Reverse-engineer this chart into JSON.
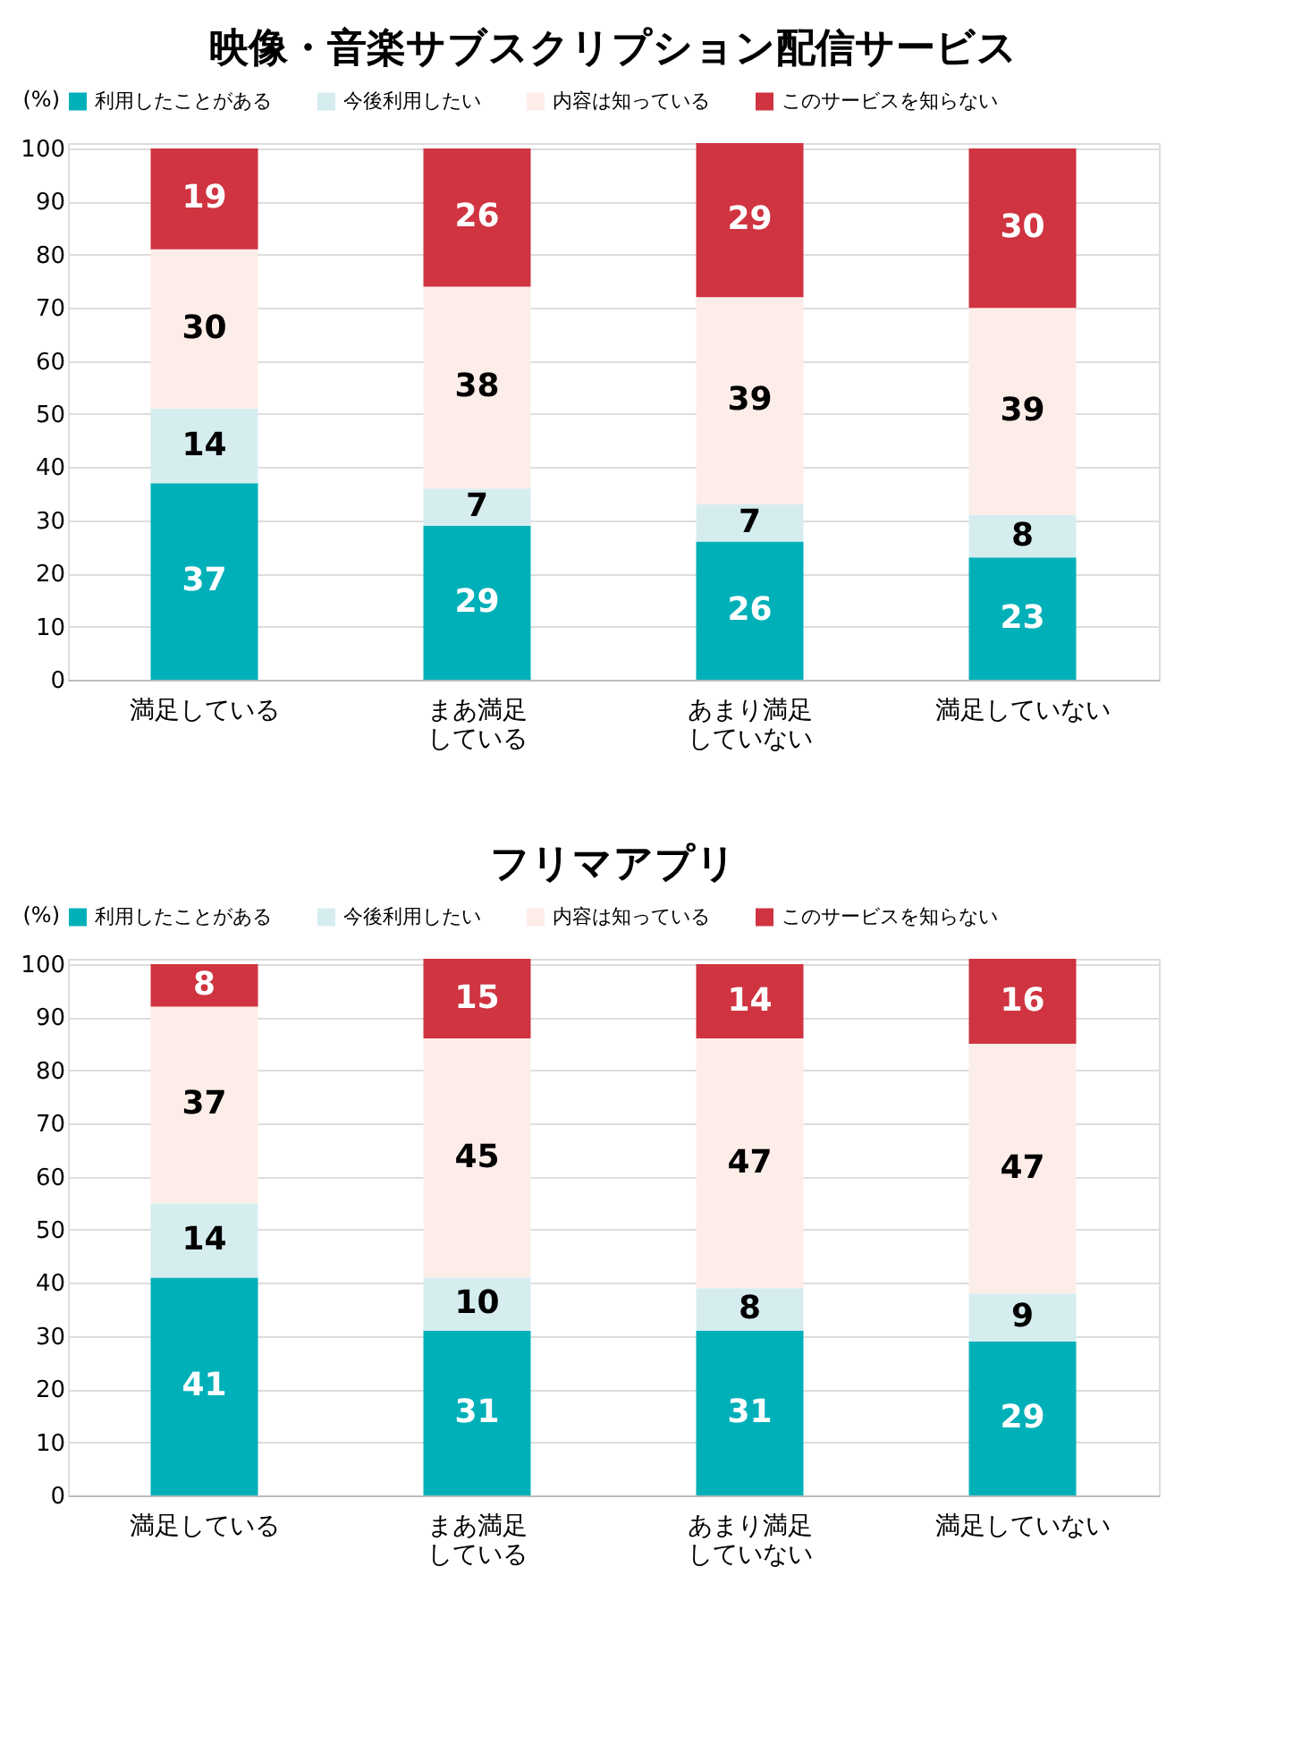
{
  "chart_data": [
    {
      "type": "bar",
      "stacked": true,
      "title": "映像・音楽サブスクリプション配信サービス",
      "ylabel": "(%)",
      "categories": [
        "満足している",
        "まあ満足している",
        "あまり満足していない",
        "満足していない"
      ],
      "series": [
        {
          "name": "利用したことがある",
          "color": "#00b0b9",
          "values": [
            37,
            29,
            26,
            23
          ]
        },
        {
          "name": "今後利用したい",
          "color": "#d6edf0",
          "values": [
            14,
            7,
            7,
            8
          ]
        },
        {
          "name": "内容は知っている",
          "color": "#fdede8",
          "values": [
            30,
            38,
            39,
            39
          ]
        },
        {
          "name": "このサービスを知らない",
          "color": "#cf3440",
          "values": [
            19,
            26,
            29,
            30
          ]
        }
      ],
      "ylim": [
        0,
        101
      ],
      "yticks": [
        0,
        10,
        20,
        30,
        40,
        50,
        60,
        70,
        80,
        90,
        100
      ],
      "grid": "y",
      "legend": "top",
      "data_labels": true
    },
    {
      "type": "bar",
      "stacked": true,
      "title": "フリマアプリ",
      "ylabel": "(%)",
      "categories": [
        "満足している",
        "まあ満足している",
        "あまり満足していない",
        "満足していない"
      ],
      "series": [
        {
          "name": "利用したことがある",
          "color": "#00b0b9",
          "values": [
            41,
            31,
            31,
            29
          ]
        },
        {
          "name": "今後利用したい",
          "color": "#d6edf0",
          "values": [
            14,
            10,
            8,
            9
          ]
        },
        {
          "name": "内容は知っている",
          "color": "#fdede8",
          "values": [
            37,
            45,
            47,
            47
          ]
        },
        {
          "name": "このサービスを知らない",
          "color": "#cf3440",
          "values": [
            8,
            15,
            14,
            16
          ]
        }
      ],
      "ylim": [
        0,
        101
      ],
      "yticks": [
        0,
        10,
        20,
        30,
        40,
        50,
        60,
        70,
        80,
        90,
        100
      ],
      "grid": "y",
      "legend": "top",
      "data_labels": true
    }
  ]
}
